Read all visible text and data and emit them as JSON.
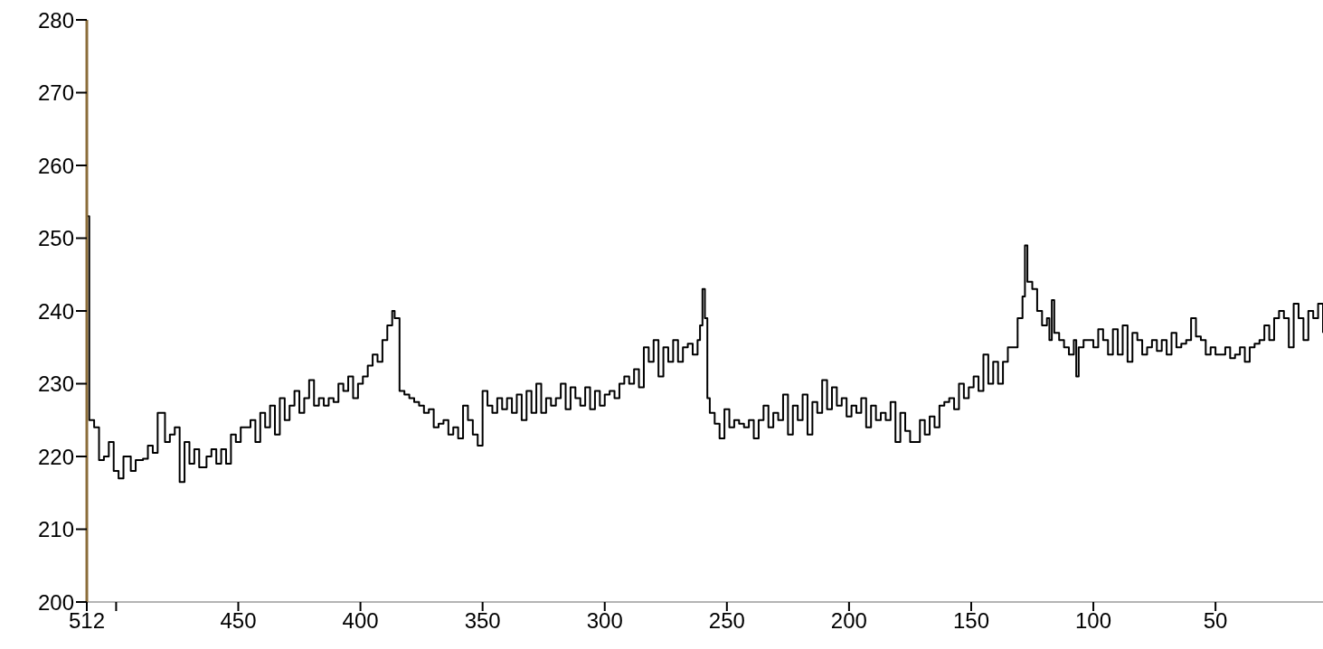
{
  "chart_data": {
    "type": "step",
    "x": [
      512,
      511,
      509,
      507,
      505,
      503,
      501,
      499,
      497,
      494,
      492,
      489,
      487,
      485,
      483,
      480,
      478,
      476,
      474,
      472,
      470,
      468,
      466,
      463,
      461,
      459,
      457,
      455,
      453,
      451,
      449,
      447,
      445,
      443,
      441,
      439,
      437,
      435,
      433,
      431,
      429,
      427,
      425,
      423,
      421,
      419,
      417,
      415,
      413,
      411,
      409,
      407,
      405,
      403,
      401,
      399,
      397,
      395,
      393,
      391,
      389,
      387,
      386,
      385,
      384,
      382,
      380,
      378,
      376,
      374,
      372,
      370,
      368,
      366,
      364,
      362,
      360,
      358,
      356,
      354,
      352,
      350,
      348,
      346,
      344,
      342,
      340,
      338,
      336,
      334,
      332,
      330,
      328,
      326,
      324,
      322,
      320,
      318,
      316,
      314,
      312,
      310,
      308,
      306,
      304,
      302,
      300,
      298,
      296,
      294,
      292,
      290,
      288,
      286,
      284,
      282,
      280,
      278,
      276,
      274,
      272,
      270,
      268,
      266,
      264,
      262,
      261,
      260,
      259,
      258,
      257,
      255,
      253,
      251,
      249,
      247,
      245,
      243,
      241,
      239,
      237,
      235,
      233,
      231,
      229,
      227,
      225,
      223,
      221,
      219,
      217,
      215,
      213,
      211,
      209,
      207,
      205,
      203,
      201,
      199,
      197,
      195,
      193,
      191,
      189,
      187,
      185,
      183,
      181,
      179,
      177,
      175,
      173,
      171,
      169,
      167,
      165,
      163,
      161,
      159,
      157,
      155,
      153,
      151,
      149,
      147,
      145,
      143,
      141,
      139,
      137,
      135,
      133,
      131,
      129,
      128,
      127,
      125,
      123,
      121,
      119,
      118,
      117,
      116,
      114,
      112,
      110,
      108,
      107,
      106,
      104,
      102,
      100,
      98,
      96,
      94,
      92,
      90,
      88,
      86,
      84,
      82,
      80,
      78,
      76,
      74,
      72,
      70,
      68,
      66,
      64,
      62,
      60,
      58,
      56,
      54,
      52,
      50,
      48,
      46,
      44,
      42,
      40,
      38,
      36,
      34,
      32,
      30,
      28,
      26,
      24,
      22,
      20,
      18,
      16,
      14,
      12,
      10,
      8,
      6
    ],
    "series": [
      {
        "color": "#000000",
        "values": [
          253,
          225,
          224,
          219.5,
          220,
          222,
          218,
          217,
          220,
          218,
          219.5,
          219.7,
          221.5,
          220.5,
          226,
          222,
          223,
          224,
          216.5,
          222,
          219,
          221,
          218.5,
          220,
          221,
          219,
          221,
          219,
          223,
          222,
          224,
          224,
          225,
          222,
          226,
          224,
          227,
          223,
          228,
          225,
          227,
          229,
          226,
          228,
          230.5,
          227,
          228,
          227,
          228,
          227.5,
          230,
          229,
          231,
          228,
          230,
          231,
          232.5,
          234,
          233,
          236,
          238,
          240,
          239,
          239,
          229,
          228.5,
          228,
          227.5,
          227,
          226,
          226.5,
          224,
          224.5,
          225,
          223,
          224,
          222.5,
          227,
          225,
          223,
          221.5,
          229,
          227,
          226,
          228,
          226.5,
          228,
          226,
          228.5,
          225,
          229,
          226,
          230,
          226,
          228,
          227,
          228,
          230,
          226.5,
          229.5,
          228,
          227,
          229.5,
          226.5,
          229,
          227,
          228.5,
          229,
          228,
          230,
          231,
          230,
          232,
          229.5,
          235,
          233,
          236,
          231,
          235,
          233,
          236,
          233,
          235,
          235.5,
          234,
          236,
          238,
          243,
          239,
          228,
          226,
          224.5,
          222.5,
          226.5,
          224,
          225,
          224.5,
          224,
          225,
          222.5,
          225,
          227,
          224,
          226,
          225,
          228.5,
          223,
          227,
          225,
          228.5,
          223,
          227.5,
          226,
          230.5,
          226.5,
          229.5,
          227,
          228,
          225.5,
          227,
          226,
          228,
          224,
          227,
          225,
          226,
          225,
          227.5,
          222,
          226,
          223.5,
          222,
          222,
          225,
          223,
          225.5,
          224,
          227,
          227.5,
          228,
          226.5,
          230,
          228,
          229.5,
          231,
          229,
          234,
          230,
          233,
          230,
          233,
          235,
          235,
          239,
          242,
          249,
          244,
          243,
          240,
          238,
          239,
          236,
          241.5,
          237,
          236,
          235,
          234,
          236,
          231,
          235,
          236,
          236,
          235,
          237.5,
          236,
          234,
          237.5,
          234,
          238,
          233,
          237,
          236,
          234,
          235,
          236,
          234.5,
          236,
          234,
          237,
          235,
          235.5,
          236,
          239,
          236.5,
          236,
          234,
          235,
          234,
          234,
          235,
          233.5,
          234,
          235,
          233,
          235,
          235.5,
          236,
          238,
          236,
          239,
          240,
          239,
          235,
          241,
          239,
          236,
          240,
          239,
          241,
          237
        ]
      }
    ],
    "xlim": [
      512,
      6
    ],
    "xticks": [
      512,
      {
        "value": 500,
        "label": null
      },
      450,
      400,
      350,
      300,
      250,
      200,
      150,
      100,
      50
    ],
    "ylim": [
      200,
      280
    ],
    "yticks": [
      200,
      210,
      220,
      230,
      240,
      250,
      260,
      270,
      280
    ],
    "grid": false,
    "legend": false
  }
}
